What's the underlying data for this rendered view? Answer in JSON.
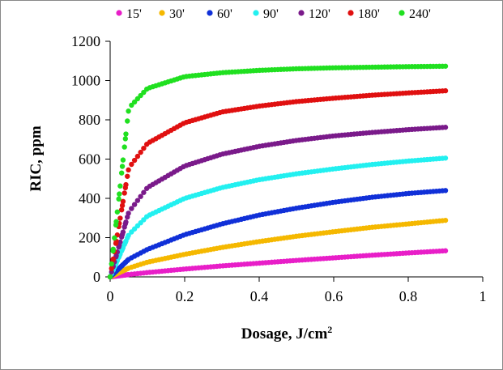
{
  "chart_data": {
    "type": "scatter",
    "title": "",
    "xlabel": "Dosage, J/cm",
    "xlabel_superscript": "2",
    "ylabel": "RIC, ppm",
    "xlim": [
      0,
      1
    ],
    "ylim": [
      0,
      1200
    ],
    "x_ticks": [
      "0",
      "0.2",
      "0.4",
      "0.6",
      "0.8",
      "1"
    ],
    "y_ticks": [
      "0",
      "200",
      "400",
      "600",
      "800",
      "1000",
      "1200"
    ],
    "grid": false,
    "legend_position": "top",
    "x_range": [
      0,
      0.9
    ],
    "series": [
      {
        "name": "15'",
        "color": "#e81ec8",
        "x": [
          0,
          0.05,
          0.1,
          0.2,
          0.3,
          0.4,
          0.5,
          0.6,
          0.7,
          0.8,
          0.9
        ],
        "values": [
          0,
          12,
          22,
          40,
          56,
          70,
          84,
          97,
          110,
          122,
          133
        ]
      },
      {
        "name": "30'",
        "color": "#f5b800",
        "x": [
          0,
          0.05,
          0.1,
          0.2,
          0.3,
          0.4,
          0.5,
          0.6,
          0.7,
          0.8,
          0.9
        ],
        "values": [
          0,
          45,
          75,
          115,
          150,
          180,
          207,
          230,
          252,
          270,
          288
        ]
      },
      {
        "name": "60'",
        "color": "#1030d8",
        "x": [
          0,
          0.05,
          0.1,
          0.2,
          0.3,
          0.4,
          0.5,
          0.6,
          0.7,
          0.8,
          0.9
        ],
        "values": [
          0,
          90,
          140,
          215,
          270,
          315,
          350,
          380,
          405,
          425,
          440
        ]
      },
      {
        "name": "90'",
        "color": "#22f0f0",
        "x": [
          0,
          0.05,
          0.1,
          0.2,
          0.3,
          0.4,
          0.5,
          0.6,
          0.7,
          0.8,
          0.9
        ],
        "values": [
          0,
          215,
          310,
          400,
          455,
          495,
          525,
          550,
          572,
          590,
          605
        ]
      },
      {
        "name": "120'",
        "color": "#7a1a8a",
        "x": [
          0,
          0.05,
          0.1,
          0.2,
          0.3,
          0.4,
          0.5,
          0.6,
          0.7,
          0.8,
          0.9
        ],
        "values": [
          0,
          330,
          455,
          565,
          625,
          665,
          695,
          718,
          735,
          750,
          762
        ]
      },
      {
        "name": "180'",
        "color": "#e01010",
        "x": [
          0,
          0.05,
          0.1,
          0.2,
          0.3,
          0.4,
          0.5,
          0.6,
          0.7,
          0.8,
          0.9
        ],
        "values": [
          0,
          555,
          680,
          785,
          840,
          870,
          893,
          910,
          925,
          937,
          948
        ]
      },
      {
        "name": "240'",
        "color": "#20e020",
        "x": [
          0,
          0.05,
          0.1,
          0.2,
          0.3,
          0.4,
          0.5,
          0.6,
          0.7,
          0.8,
          0.9
        ],
        "values": [
          0,
          860,
          960,
          1020,
          1040,
          1052,
          1060,
          1065,
          1068,
          1071,
          1073
        ]
      }
    ]
  }
}
